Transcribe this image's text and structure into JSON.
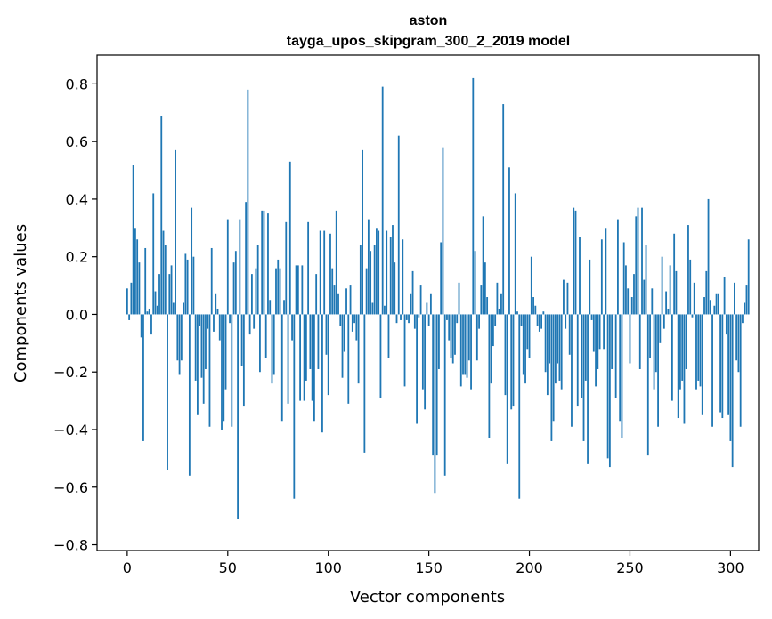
{
  "chart_data": {
    "type": "bar",
    "title": "aston",
    "subtitle": "tayga_upos_skipgram_300_2_2019 model",
    "xlabel": "Vector components",
    "ylabel": "Components values",
    "xlim": [
      -15,
      314
    ],
    "ylim": [
      -0.82,
      0.9
    ],
    "xticks": [
      0,
      50,
      100,
      150,
      200,
      250,
      300
    ],
    "yticks": [
      -0.8,
      -0.6,
      -0.4,
      -0.2,
      0.0,
      0.2,
      0.4,
      0.6,
      0.8
    ],
    "ytick_labels": [
      "−0.8",
      "−0.6",
      "−0.4",
      "−0.2",
      "0.0",
      "0.2",
      "0.4",
      "0.6",
      "0.8"
    ],
    "color": "#1f77b4",
    "values": [
      0.09,
      -0.02,
      0.11,
      0.52,
      0.3,
      0.26,
      0.18,
      -0.08,
      -0.44,
      0.23,
      0.01,
      0.02,
      -0.07,
      0.42,
      0.08,
      0.03,
      0.14,
      0.69,
      0.29,
      0.24,
      -0.54,
      0.14,
      0.17,
      0.04,
      0.57,
      -0.16,
      -0.21,
      -0.16,
      0.04,
      0.21,
      0.19,
      -0.56,
      0.37,
      0.2,
      -0.23,
      -0.35,
      -0.04,
      -0.22,
      -0.31,
      -0.19,
      -0.05,
      -0.39,
      0.23,
      -0.06,
      0.07,
      0.02,
      -0.09,
      -0.4,
      -0.37,
      -0.26,
      0.33,
      -0.03,
      -0.39,
      0.18,
      0.22,
      -0.71,
      0.33,
      -0.18,
      -0.32,
      0.39,
      0.78,
      -0.07,
      0.14,
      -0.05,
      0.16,
      0.24,
      -0.2,
      0.36,
      0.36,
      -0.15,
      0.35,
      0.05,
      -0.24,
      -0.21,
      0.16,
      0.19,
      0.16,
      -0.37,
      0.05,
      0.32,
      -0.31,
      0.53,
      -0.09,
      -0.64,
      0.17,
      0.17,
      -0.3,
      0.17,
      -0.3,
      -0.23,
      0.32,
      -0.19,
      -0.3,
      -0.37,
      0.14,
      -0.19,
      0.29,
      -0.41,
      0.29,
      -0.14,
      -0.28,
      0.28,
      0.16,
      0.1,
      0.36,
      0.07,
      -0.04,
      -0.22,
      -0.13,
      0.09,
      -0.31,
      0.1,
      -0.06,
      -0.03,
      -0.09,
      -0.24,
      0.24,
      0.57,
      -0.48,
      0.16,
      0.33,
      0.22,
      0.04,
      0.24,
      0.3,
      0.29,
      -0.29,
      0.79,
      0.03,
      0.29,
      -0.15,
      0.27,
      0.31,
      0.18,
      -0.03,
      0.62,
      -0.02,
      0.26,
      -0.25,
      -0.02,
      -0.03,
      0.07,
      0.15,
      -0.05,
      -0.38,
      -0.01,
      0.1,
      -0.26,
      -0.33,
      0.04,
      -0.04,
      0.07,
      -0.49,
      -0.62,
      -0.49,
      -0.19,
      0.25,
      0.58,
      -0.56,
      -0.02,
      -0.09,
      -0.15,
      -0.17,
      -0.14,
      -0.03,
      0.11,
      -0.25,
      -0.21,
      -0.21,
      -0.22,
      -0.16,
      -0.26,
      0.82,
      0.22,
      -0.16,
      -0.05,
      0.1,
      0.34,
      0.18,
      0.06,
      -0.43,
      -0.24,
      -0.11,
      -0.04,
      0.11,
      0.02,
      0.07,
      0.73,
      -0.28,
      -0.52,
      0.51,
      -0.33,
      -0.32,
      0.42,
      0.01,
      -0.64,
      -0.04,
      -0.21,
      -0.24,
      -0.12,
      -0.15,
      0.2,
      0.06,
      0.03,
      -0.04,
      -0.06,
      -0.05,
      0.01,
      -0.2,
      -0.28,
      -0.17,
      -0.44,
      -0.37,
      -0.24,
      -0.17,
      -0.23,
      -0.26,
      0.12,
      -0.05,
      0.11,
      -0.14,
      -0.39,
      0.37,
      0.36,
      -0.32,
      0.27,
      -0.29,
      -0.44,
      -0.23,
      -0.52,
      0.19,
      -0.02,
      -0.13,
      -0.25,
      -0.19,
      -0.12,
      0.26,
      -0.12,
      0.3,
      -0.5,
      -0.53,
      -0.19,
      0.0,
      -0.29,
      0.33,
      -0.37,
      -0.43,
      0.25,
      0.17,
      0.09,
      -0.17,
      0.06,
      0.14,
      0.34,
      0.37,
      -0.19,
      0.37,
      0.12,
      0.24,
      -0.49,
      -0.15,
      0.09,
      -0.26,
      -0.2,
      -0.39,
      -0.1,
      0.2,
      -0.05,
      0.08,
      0.02,
      0.17,
      -0.3,
      0.28,
      0.15,
      -0.36,
      -0.26,
      -0.23,
      -0.38,
      -0.19,
      0.31,
      0.19,
      -0.01,
      0.11,
      -0.26,
      -0.23,
      -0.25,
      -0.35,
      0.06,
      0.15,
      0.4,
      0.05,
      -0.39,
      0.03,
      0.07,
      0.07,
      -0.34,
      -0.36,
      0.13,
      -0.07,
      -0.35,
      -0.44,
      -0.53,
      0.11,
      -0.16,
      -0.2,
      -0.39,
      -0.03,
      0.04,
      0.1,
      0.26
    ]
  }
}
